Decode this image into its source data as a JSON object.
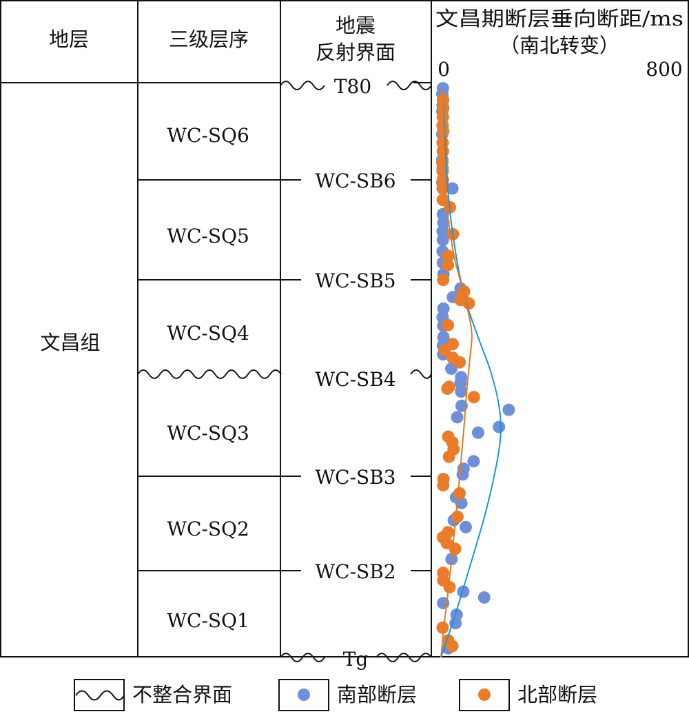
{
  "headers": {
    "stratum": "地层",
    "sequence": "三级层序",
    "seismic_line1": "地震",
    "seismic_line2": "反射界面",
    "plot_line1": "文昌期断层垂向断距/ms",
    "plot_line2": "（南北转变）"
  },
  "formation": "文昌组",
  "sequences": [
    "WC-SQ6",
    "WC-SQ5",
    "WC-SQ4",
    "WC-SQ3",
    "WC-SQ2",
    "WC-SQ1"
  ],
  "reflectors": {
    "top": "T80",
    "bottom": "Tg",
    "internal": [
      "WC-SB6",
      "WC-SB5",
      "WC-SB4",
      "WC-SB3",
      "WC-SB2"
    ]
  },
  "legend": {
    "unconformity": "不整合界面",
    "south": "南部断层",
    "north": "北部断层"
  },
  "colors": {
    "south": "#6f8fd8",
    "north": "#ea7d2b",
    "south_curve": "#1b95dc",
    "north_curve": "#e37a1f",
    "line": "#111111"
  },
  "chart_data": {
    "type": "scatter",
    "x_axis": {
      "min": 0,
      "max": 800,
      "tick_labels": [
        "0",
        "800"
      ]
    },
    "y_units": "stratigraphic position (0 = Tg, 1 = T80)",
    "series": [
      {
        "key": "south",
        "name": "南部断层",
        "points": [
          [
            7,
            0.995
          ],
          [
            5,
            0.985
          ],
          [
            8,
            0.975
          ],
          [
            6,
            0.965
          ],
          [
            5,
            0.955
          ],
          [
            7,
            0.945
          ],
          [
            6,
            0.93
          ],
          [
            5,
            0.915
          ],
          [
            6,
            0.9
          ],
          [
            7,
            0.885
          ],
          [
            5,
            0.87
          ],
          [
            6,
            0.855
          ],
          [
            5,
            0.83
          ],
          [
            7,
            0.8
          ],
          [
            41,
            0.82
          ],
          [
            7,
            0.775
          ],
          [
            9,
            0.76
          ],
          [
            6,
            0.745
          ],
          [
            7,
            0.73
          ],
          [
            6,
            0.71
          ],
          [
            7,
            0.69
          ],
          [
            9,
            0.67
          ],
          [
            70,
            0.645
          ],
          [
            43,
            0.63
          ],
          [
            9,
            0.61
          ],
          [
            6,
            0.595
          ],
          [
            8,
            0.58
          ],
          [
            9,
            0.56
          ],
          [
            7,
            0.545
          ],
          [
            8,
            0.53
          ],
          [
            37,
            0.505
          ],
          [
            72,
            0.49
          ],
          [
            70,
            0.48
          ],
          [
            72,
            0.465
          ],
          [
            74,
            0.44
          ],
          [
            58,
            0.42
          ],
          [
            243,
            0.433
          ],
          [
            208,
            0.403
          ],
          [
            133,
            0.393
          ],
          [
            117,
            0.343
          ],
          [
            81,
            0.33
          ],
          [
            78,
            0.32
          ],
          [
            54,
            0.28
          ],
          [
            73,
            0.27
          ],
          [
            46,
            0.24
          ],
          [
            89,
            0.228
          ],
          [
            38,
            0.172
          ],
          [
            80,
            0.115
          ],
          [
            155,
            0.105
          ],
          [
            8,
            0.095
          ],
          [
            56,
            0.075
          ],
          [
            52,
            0.06
          ],
          [
            26,
            0.016
          ]
        ]
      },
      {
        "key": "north",
        "name": "北部断层",
        "points": [
          [
            7,
            0.975
          ],
          [
            8,
            0.96
          ],
          [
            7,
            0.945
          ],
          [
            6,
            0.93
          ],
          [
            8,
            0.92
          ],
          [
            6,
            0.9
          ],
          [
            7,
            0.885
          ],
          [
            5,
            0.865
          ],
          [
            6,
            0.85
          ],
          [
            7,
            0.835
          ],
          [
            6,
            0.82
          ],
          [
            7,
            0.8
          ],
          [
            32,
            0.787
          ],
          [
            43,
            0.74
          ],
          [
            26,
            0.702
          ],
          [
            25,
            0.686
          ],
          [
            8,
            0.66
          ],
          [
            83,
            0.64
          ],
          [
            77,
            0.63
          ],
          [
            70,
            0.625
          ],
          [
            100,
            0.619
          ],
          [
            25,
            0.581
          ],
          [
            42,
            0.548
          ],
          [
            13,
            0.537
          ],
          [
            42,
            0.524
          ],
          [
            67,
            0.516
          ],
          [
            23,
            0.47
          ],
          [
            29,
            0.473
          ],
          [
            118,
            0.455
          ],
          [
            26,
            0.386
          ],
          [
            41,
            0.376
          ],
          [
            45,
            0.364
          ],
          [
            29,
            0.351
          ],
          [
            9,
            0.312
          ],
          [
            8,
            0.301
          ],
          [
            67,
            0.287
          ],
          [
            59,
            0.246
          ],
          [
            25,
            0.219
          ],
          [
            7,
            0.21
          ],
          [
            21,
            0.2
          ],
          [
            51,
            0.19
          ],
          [
            8,
            0.148
          ],
          [
            8,
            0.135
          ],
          [
            31,
            0.123
          ],
          [
            6,
            0.052
          ],
          [
            26,
            0.03
          ],
          [
            41,
            0.02
          ]
        ]
      }
    ],
    "trend_curves": [
      {
        "key": "south",
        "points": [
          [
            8,
            0.995
          ],
          [
            15,
            0.9
          ],
          [
            28,
            0.8
          ],
          [
            55,
            0.7
          ],
          [
            88,
            0.625
          ],
          [
            133,
            0.56
          ],
          [
            178,
            0.5
          ],
          [
            208,
            0.44
          ],
          [
            214,
            0.39
          ],
          [
            196,
            0.33
          ],
          [
            158,
            0.25
          ],
          [
            98,
            0.15
          ],
          [
            48,
            0.07
          ],
          [
            0,
            0
          ]
        ]
      },
      {
        "key": "north",
        "points": [
          [
            8,
            0.995
          ],
          [
            10,
            0.93
          ],
          [
            15,
            0.84
          ],
          [
            25,
            0.77
          ],
          [
            48,
            0.7
          ],
          [
            85,
            0.63
          ],
          [
            110,
            0.57
          ],
          [
            103,
            0.52
          ],
          [
            93,
            0.47
          ],
          [
            82,
            0.4
          ],
          [
            64,
            0.3
          ],
          [
            44,
            0.2
          ],
          [
            27,
            0.12
          ],
          [
            12,
            0.06
          ],
          [
            0,
            0
          ]
        ]
      }
    ]
  }
}
